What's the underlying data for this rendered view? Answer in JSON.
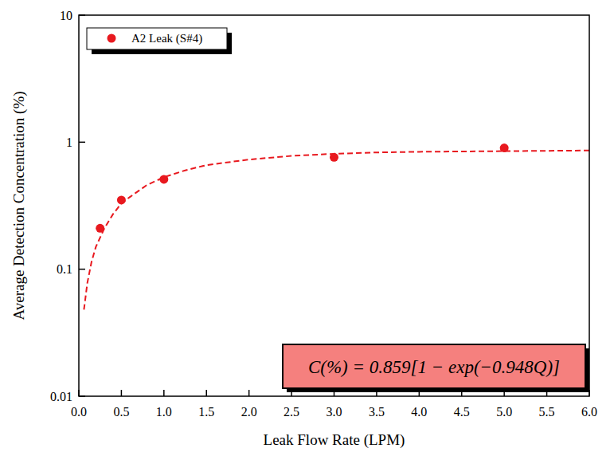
{
  "chart_data": {
    "type": "scatter",
    "x_label": "Leak Flow Rate (LPM)",
    "y_label": "Average Detection Concentration (%)",
    "annotation": "C(%) = 0.859[1 − exp(−0.948Q)]",
    "log": "y",
    "legend": "upper left",
    "grid": false,
    "xlim": [
      0,
      6
    ],
    "ylim": [
      0.01,
      10
    ],
    "xticks": [
      {
        "value": 0,
        "label": "0.0"
      },
      {
        "value": 0.5,
        "label": "0.5"
      },
      {
        "value": 1,
        "label": "1.0"
      },
      {
        "value": 1.5,
        "label": "1.5"
      },
      {
        "value": 2,
        "label": "2.0"
      },
      {
        "value": 2.5,
        "label": "2.5"
      },
      {
        "value": 3,
        "label": "3.0"
      },
      {
        "value": 3.5,
        "label": "3.5"
      },
      {
        "value": 4,
        "label": "4.0"
      },
      {
        "value": 4.5,
        "label": "4.5"
      },
      {
        "value": 5,
        "label": "5.0"
      },
      {
        "value": 5.5,
        "label": "5.5"
      },
      {
        "value": 6,
        "label": "6.0"
      }
    ],
    "yticks": [
      0.01,
      0.1,
      1,
      10
    ],
    "series": [
      {
        "name": "A2 Leak (S#4)",
        "type": "scatter",
        "marker": "circle",
        "color": "#e8191f",
        "x": [
          0.25,
          0.5,
          1.0,
          3.0,
          5.0
        ],
        "values": [
          0.21,
          0.35,
          0.51,
          0.76,
          0.9
        ]
      },
      {
        "type": "line",
        "line_style": "dashed",
        "color": "#e8191f",
        "x": [
          0.06,
          0.1,
          0.15,
          0.2,
          0.3,
          0.4,
          0.5,
          0.6,
          0.8,
          1.0,
          1.25,
          1.5,
          2.0,
          2.5,
          3.0,
          3.5,
          4.0,
          5.0,
          6.0
        ],
        "values": [
          0.048,
          0.078,
          0.115,
          0.15,
          0.21,
          0.27,
          0.33,
          0.37,
          0.46,
          0.53,
          0.6,
          0.66,
          0.73,
          0.78,
          0.81,
          0.83,
          0.84,
          0.85,
          0.86
        ]
      }
    ]
  }
}
